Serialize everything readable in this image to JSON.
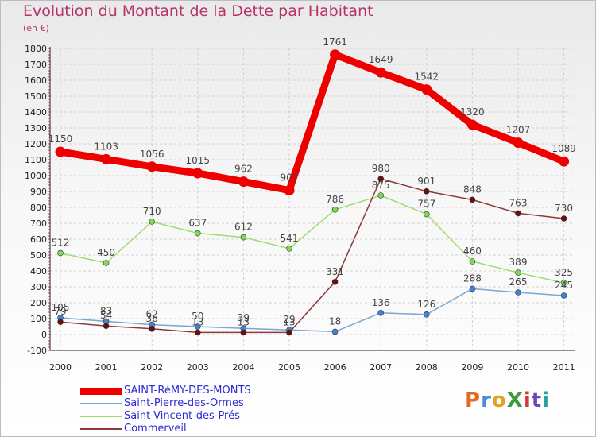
{
  "title": "Evolution du Montant de la Dette par Habitant",
  "subtitle": "(en €)",
  "logo": {
    "text": "ProXiti",
    "colors": [
      "#e06b1f",
      "#4a8fd6",
      "#e0a21f",
      "#3c9c3c",
      "#d63b3b",
      "#6a4ab8",
      "#2aa0a0"
    ]
  },
  "chart_data": {
    "type": "line",
    "x": [
      "2000",
      "2001",
      "2002",
      "2003",
      "2004",
      "2005",
      "2006",
      "2007",
      "2008",
      "2009",
      "2010",
      "2011"
    ],
    "ylim": [
      -100,
      1800
    ],
    "yticks": [
      -100,
      0,
      100,
      200,
      300,
      400,
      500,
      600,
      700,
      800,
      900,
      1000,
      1100,
      1200,
      1300,
      1400,
      1500,
      1600,
      1700,
      1800
    ],
    "grid": true,
    "legend_position": "bottom-left",
    "series": [
      {
        "name": "SAINT-RéMY-DES-MONTS",
        "color": "#ee0000",
        "marker": "#ee0000",
        "values": [
          1150,
          1103,
          1056,
          1015,
          962,
          907,
          1761,
          1649,
          1542,
          1320,
          1207,
          1089
        ],
        "labels": [
          "1150",
          "1103",
          "1056",
          "1015",
          "962",
          "907",
          "1761",
          "1649",
          "1542",
          "1320",
          "1207",
          "1089"
        ]
      },
      {
        "name": "Saint-Pierre-des-Ormes",
        "color": "#7aa6cf",
        "marker": "#3d86d6",
        "values": [
          105,
          83,
          62,
          50,
          39,
          29,
          18,
          136,
          126,
          288,
          265,
          245
        ],
        "labels": [
          "105",
          "83",
          "62",
          "50",
          "39",
          "29",
          "18",
          "136",
          "126",
          "288",
          "265",
          "245"
        ]
      },
      {
        "name": "Saint-Vincent-des-Prés",
        "color": "#9bdc72",
        "marker": "#7ed957",
        "values": [
          512,
          450,
          710,
          637,
          612,
          541,
          786,
          875,
          757,
          460,
          389,
          325
        ],
        "labels": [
          "512",
          "450",
          "710",
          "637",
          "612",
          "541",
          "786",
          "875",
          "757",
          "460",
          "389",
          "325"
        ]
      },
      {
        "name": "Commerveil",
        "color": "#8a3a3a",
        "marker": "#6b1010",
        "values": [
          79,
          54,
          36,
          13,
          13,
          13,
          331,
          980,
          901,
          848,
          763,
          730
        ],
        "labels": [
          "79",
          "54",
          "36",
          "13",
          "13",
          "13",
          "331",
          "980",
          "901",
          "848",
          "763",
          "730"
        ]
      }
    ]
  }
}
